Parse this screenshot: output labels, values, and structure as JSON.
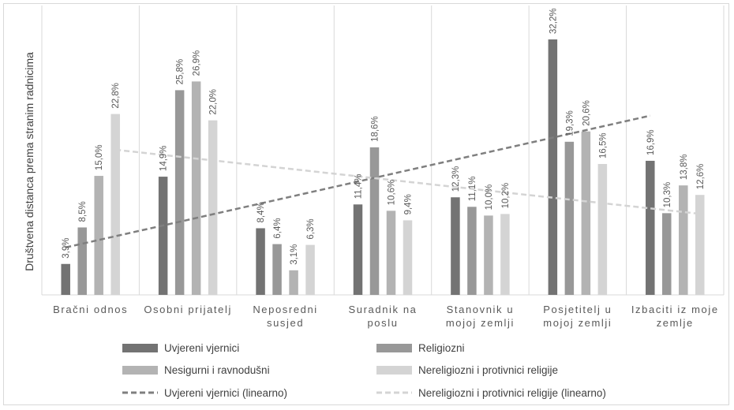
{
  "chart_data": {
    "type": "bar",
    "title": "",
    "ylabel": "Društvena distanca prema stranim radnicima",
    "xlabel": "",
    "ylim": [
      0,
      33
    ],
    "grid": "vertical separators between categories",
    "legend_position": "bottom",
    "categories": [
      [
        "Bračni odnos"
      ],
      [
        "Osobni prijatelj"
      ],
      [
        "Neposredni",
        "susjed"
      ],
      [
        "Suradnik na",
        "poslu"
      ],
      [
        "Stanovnik u",
        "mojoj zemlji"
      ],
      [
        "Posjetitelj u",
        "mojoj zemlji"
      ],
      [
        "Izbaciti iz moje",
        "zemlje"
      ]
    ],
    "series": [
      {
        "name": "Uvjereni vjernici",
        "color": "#737373",
        "values": [
          3.9,
          14.9,
          8.4,
          11.4,
          12.3,
          32.2,
          16.9
        ],
        "labels": [
          "3,9%",
          "14,9%",
          "8,4%",
          "11,4%",
          "12,3%",
          "32,2%",
          "16,9%"
        ]
      },
      {
        "name": "Religiozni",
        "color": "#989898",
        "values": [
          8.5,
          25.8,
          6.4,
          18.6,
          11.1,
          19.3,
          10.3
        ],
        "labels": [
          "8,5%",
          "25,8%",
          "6,4%",
          "18,6%",
          "11,1%",
          "19,3%",
          "10,3%"
        ]
      },
      {
        "name": "Nesigurni i ravnodušni",
        "color": "#b3b3b3",
        "values": [
          15.0,
          26.9,
          3.1,
          10.6,
          10.0,
          20.6,
          13.8
        ],
        "labels": [
          "15,0%",
          "26,9%",
          "3,1%",
          "10,6%",
          "10,0%",
          "20,6%",
          "13,8%"
        ]
      },
      {
        "name": "Nereligiozni i protivnici religije",
        "color": "#d4d4d4",
        "values": [
          22.8,
          22.0,
          6.3,
          9.4,
          10.2,
          16.5,
          12.6
        ],
        "labels": [
          "22,8%",
          "22,0%",
          "6,3%",
          "9,4%",
          "10,2%",
          "16,5%",
          "12,6%"
        ]
      }
    ],
    "trendlines": [
      {
        "name": "Uvjereni vjernici (linearno)",
        "series_index": 0,
        "color": "#7f7f7f",
        "style": "dashed"
      },
      {
        "name": "Nereligiozni i protivnici religije (linearno)",
        "series_index": 3,
        "color": "#d4d4d4",
        "style": "dashed"
      }
    ]
  }
}
